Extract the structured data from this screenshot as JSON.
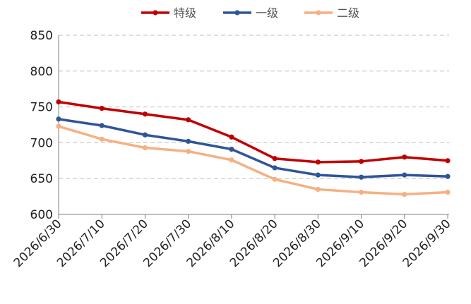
{
  "chart_data": {
    "type": "line",
    "title": "",
    "xlabel": "",
    "ylabel": "",
    "categories": [
      "2026/6/30",
      "2026/7/10",
      "2026/7/20",
      "2026/7/30",
      "2026/8/10",
      "2026/8/20",
      "2026/8/30",
      "2026/9/10",
      "2026/9/20",
      "2026/9/30"
    ],
    "ylim": [
      600,
      850
    ],
    "yticks": [
      600,
      650,
      700,
      750,
      800,
      850
    ],
    "grid": true,
    "legend_position": "top",
    "series": [
      {
        "name": "特级",
        "color": "#C00000",
        "values": [
          757,
          748,
          740,
          732,
          708,
          678,
          673,
          674,
          680,
          675
        ]
      },
      {
        "name": "一级",
        "color": "#2F5597",
        "values": [
          733,
          724,
          711,
          702,
          691,
          665,
          655,
          652,
          655,
          653
        ]
      },
      {
        "name": "二级",
        "color": "#F4B183",
        "values": [
          723,
          705,
          693,
          688,
          676,
          649,
          635,
          631,
          628,
          631
        ]
      }
    ]
  }
}
